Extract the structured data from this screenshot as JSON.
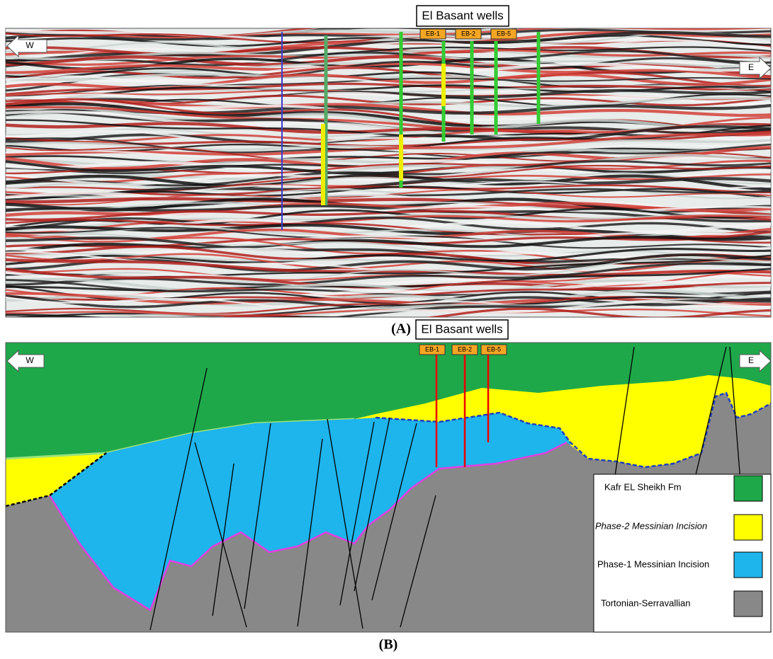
{
  "panel_a": {
    "title": "El Basant wells",
    "wells": [
      "EB-1",
      "EB-2",
      "EB-5"
    ],
    "west": "W",
    "east": "E",
    "label": "(A)"
  },
  "panel_b": {
    "title": "El Basant wells",
    "wells": [
      "EB-1",
      "EB-2",
      "EB-5"
    ],
    "west": "W",
    "east": "E",
    "label": "(B)",
    "legend": [
      "Kafr EL Sheikh Fm",
      "Phase-2 Messinian Incision",
      "Phase-1 Messinian Incision",
      "Tortonian-Serravallian"
    ]
  }
}
